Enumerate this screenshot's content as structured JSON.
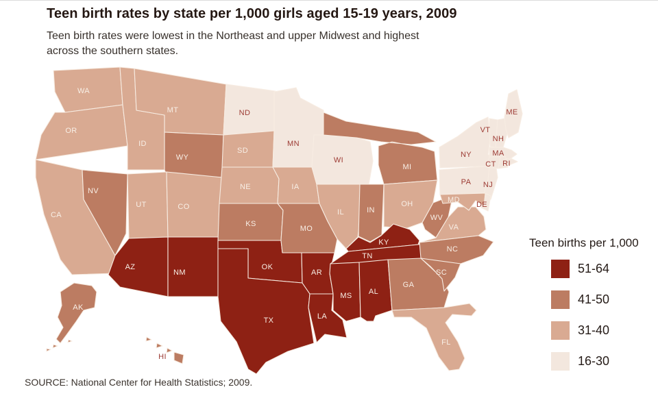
{
  "header": {
    "title": "Teen birth rates by state per 1,000 girls aged 15-19 years, 2009",
    "subtitle": "Teen birth rates were lowest in the Northeast and upper Midwest and highest across the southern states."
  },
  "legend": {
    "title": "Teen births per 1,000",
    "items": [
      {
        "range": "51-64",
        "color": "#8e2114"
      },
      {
        "range": "41-50",
        "color": "#bc7c62"
      },
      {
        "range": "31-40",
        "color": "#d9aa92"
      },
      {
        "range": "16-30",
        "color": "#f3e7de"
      }
    ]
  },
  "source": "SOURCE: National Center for Health Statistics; 2009.",
  "map": {
    "label_colors": {
      "light": "#f8efe6",
      "dark": "#9c3a33"
    },
    "border_color": "#f7ece2"
  },
  "chart_data": {
    "type": "choropleth",
    "region": "United States, by state",
    "title": "Teen birth rates by state per 1,000 girls aged 15-19 years, 2009",
    "unit": "teen births per 1,000 girls aged 15-19",
    "year": "2009",
    "bins": [
      "16-30",
      "31-40",
      "41-50",
      "51-64"
    ],
    "legend_position": "right",
    "states": [
      {
        "abbr": "WA",
        "bucket": "31-40",
        "label": "light"
      },
      {
        "abbr": "OR",
        "bucket": "31-40",
        "label": "light"
      },
      {
        "abbr": "CA",
        "bucket": "31-40",
        "label": "light"
      },
      {
        "abbr": "NV",
        "bucket": "41-50",
        "label": "light"
      },
      {
        "abbr": "ID",
        "bucket": "31-40",
        "label": "light"
      },
      {
        "abbr": "MT",
        "bucket": "31-40",
        "label": "light"
      },
      {
        "abbr": "WY",
        "bucket": "41-50",
        "label": "light"
      },
      {
        "abbr": "UT",
        "bucket": "31-40",
        "label": "light"
      },
      {
        "abbr": "CO",
        "bucket": "31-40",
        "label": "light"
      },
      {
        "abbr": "AZ",
        "bucket": "51-64",
        "label": "light"
      },
      {
        "abbr": "NM",
        "bucket": "51-64",
        "label": "light"
      },
      {
        "abbr": "ND",
        "bucket": "16-30",
        "label": "dark"
      },
      {
        "abbr": "SD",
        "bucket": "31-40",
        "label": "light"
      },
      {
        "abbr": "NE",
        "bucket": "31-40",
        "label": "light"
      },
      {
        "abbr": "KS",
        "bucket": "41-50",
        "label": "light"
      },
      {
        "abbr": "OK",
        "bucket": "51-64",
        "label": "light"
      },
      {
        "abbr": "TX",
        "bucket": "51-64",
        "label": "light"
      },
      {
        "abbr": "MN",
        "bucket": "16-30",
        "label": "dark"
      },
      {
        "abbr": "IA",
        "bucket": "31-40",
        "label": "light"
      },
      {
        "abbr": "MO",
        "bucket": "41-50",
        "label": "light"
      },
      {
        "abbr": "AR",
        "bucket": "51-64",
        "label": "light"
      },
      {
        "abbr": "LA",
        "bucket": "51-64",
        "label": "light"
      },
      {
        "abbr": "WI",
        "bucket": "16-30",
        "label": "dark"
      },
      {
        "abbr": "IL",
        "bucket": "31-40",
        "label": "light"
      },
      {
        "abbr": "IN",
        "bucket": "41-50",
        "label": "light"
      },
      {
        "abbr": "MI",
        "bucket": "41-50",
        "label": "light"
      },
      {
        "abbr": "OH",
        "bucket": "31-40",
        "label": "light"
      },
      {
        "abbr": "KY",
        "bucket": "51-64",
        "label": "light"
      },
      {
        "abbr": "TN",
        "bucket": "51-64",
        "label": "light"
      },
      {
        "abbr": "MS",
        "bucket": "51-64",
        "label": "light"
      },
      {
        "abbr": "AL",
        "bucket": "51-64",
        "label": "light"
      },
      {
        "abbr": "GA",
        "bucket": "41-50",
        "label": "light"
      },
      {
        "abbr": "WV",
        "bucket": "41-50",
        "label": "light"
      },
      {
        "abbr": "VA",
        "bucket": "31-40",
        "label": "light"
      },
      {
        "abbr": "NC",
        "bucket": "41-50",
        "label": "light"
      },
      {
        "abbr": "SC",
        "bucket": "41-50",
        "label": "light"
      },
      {
        "abbr": "FL",
        "bucket": "31-40",
        "label": "light"
      },
      {
        "abbr": "PA",
        "bucket": "16-30",
        "label": "dark"
      },
      {
        "abbr": "NY",
        "bucket": "16-30",
        "label": "dark"
      },
      {
        "abbr": "NJ",
        "bucket": "16-30",
        "label": "dark"
      },
      {
        "abbr": "DE",
        "bucket": "16-30",
        "label": "dark"
      },
      {
        "abbr": "MD",
        "bucket": "31-40",
        "label": "light"
      },
      {
        "abbr": "VT",
        "bucket": "16-30",
        "label": "dark"
      },
      {
        "abbr": "NH",
        "bucket": "16-30",
        "label": "dark"
      },
      {
        "abbr": "MA",
        "bucket": "16-30",
        "label": "dark"
      },
      {
        "abbr": "CT",
        "bucket": "16-30",
        "label": "dark"
      },
      {
        "abbr": "RI",
        "bucket": "16-30",
        "label": "dark"
      },
      {
        "abbr": "ME",
        "bucket": "16-30",
        "label": "dark"
      },
      {
        "abbr": "AK",
        "bucket": "41-50",
        "label": "light"
      },
      {
        "abbr": "HI",
        "bucket": "41-50",
        "label": "dark"
      }
    ]
  }
}
